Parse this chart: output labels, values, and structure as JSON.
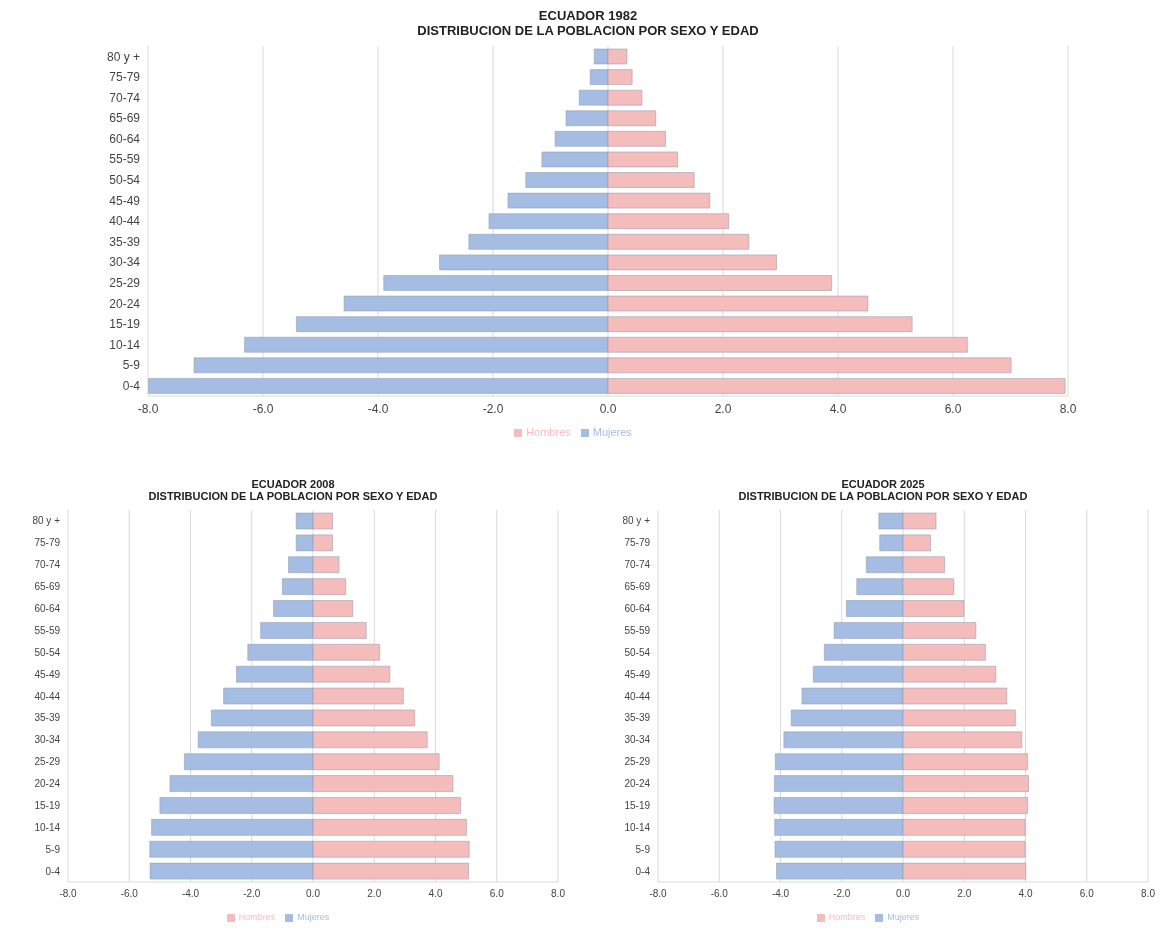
{
  "chart_data": [
    {
      "type": "bar",
      "orientation": "horizontal",
      "stacked": true,
      "title": "ECUADOR 1982",
      "subtitle": "DISTRIBUCION DE LA POBLACION POR SEXO Y EDAD",
      "categories": [
        "80 y +",
        "75-79",
        "70-74",
        "65-69",
        "60-64",
        "55-59",
        "50-54",
        "45-49",
        "40-44",
        "35-39",
        "30-34",
        "25-29",
        "20-24",
        "15-19",
        "10-14",
        "5-9",
        "0-4"
      ],
      "series": [
        {
          "name": "Mujeres",
          "color": "#a6bde3",
          "values": [
            -0.24,
            -0.31,
            -0.5,
            -0.73,
            -0.92,
            -1.15,
            -1.43,
            -1.74,
            -2.07,
            -2.42,
            -2.93,
            -3.9,
            -4.59,
            -5.42,
            -6.32,
            -7.2,
            -7.99
          ]
        },
        {
          "name": "Hombres",
          "color": "#f5bcbc",
          "values": [
            0.33,
            0.42,
            0.59,
            0.83,
            1.0,
            1.21,
            1.5,
            1.77,
            2.1,
            2.45,
            2.93,
            3.89,
            4.52,
            5.29,
            6.25,
            7.01,
            7.95
          ]
        }
      ],
      "xlim": [
        -8,
        8
      ],
      "xticks": [
        {
          "value": -8,
          "label": "-8.0"
        },
        {
          "value": -6,
          "label": "-6.0"
        },
        {
          "value": -4,
          "label": "-4.0"
        },
        {
          "value": -2,
          "label": "-2.0"
        },
        {
          "value": 0,
          "label": "0.0"
        },
        {
          "value": 2,
          "label": "2.0"
        },
        {
          "value": 4,
          "label": "4.0"
        },
        {
          "value": 6,
          "label": "6.0"
        },
        {
          "value": 8,
          "label": "8.0"
        }
      ],
      "grid": "x",
      "legend": "bottom"
    },
    {
      "type": "bar",
      "orientation": "horizontal",
      "stacked": true,
      "title": "ECUADOR 2008",
      "subtitle": "DISTRIBUCION DE LA POBLACION POR SEXO Y EDAD",
      "categories": [
        "80 y +",
        "75-79",
        "70-74",
        "65-69",
        "60-64",
        "55-59",
        "50-54",
        "45-49",
        "40-44",
        "35-39",
        "30-34",
        "25-29",
        "20-24",
        "15-19",
        "10-14",
        "5-9",
        "0-4"
      ],
      "series": [
        {
          "name": "Mujeres",
          "color": "#a6bde3",
          "values": [
            -0.55,
            -0.55,
            -0.8,
            -1.0,
            -1.29,
            -1.71,
            -2.13,
            -2.5,
            -2.92,
            -3.32,
            -3.75,
            -4.2,
            -4.67,
            -5.0,
            -5.27,
            -5.33,
            -5.32
          ]
        },
        {
          "name": "Hombres",
          "color": "#f5bcbc",
          "values": [
            0.64,
            0.64,
            0.85,
            1.07,
            1.3,
            1.74,
            2.18,
            2.51,
            2.95,
            3.32,
            3.73,
            4.12,
            4.57,
            4.82,
            5.01,
            5.1,
            5.08
          ]
        }
      ],
      "xlim": [
        -8,
        8
      ],
      "xticks": [
        {
          "value": -8,
          "label": "-8.0"
        },
        {
          "value": -6,
          "label": "-6.0"
        },
        {
          "value": -4,
          "label": "-4.0"
        },
        {
          "value": -2,
          "label": "-2.0"
        },
        {
          "value": 0,
          "label": "0.0"
        },
        {
          "value": 2,
          "label": "2.0"
        },
        {
          "value": 4,
          "label": "4.0"
        },
        {
          "value": 6,
          "label": "6.0"
        },
        {
          "value": 8,
          "label": "8.0"
        }
      ],
      "grid": "x",
      "legend": "bottom"
    },
    {
      "type": "bar",
      "orientation": "horizontal",
      "stacked": true,
      "title": "ECUADOR 2025",
      "subtitle": "DISTRIBUCION DE LA POBLACION POR SEXO Y EDAD",
      "categories": [
        "80 y +",
        "75-79",
        "70-74",
        "65-69",
        "60-64",
        "55-59",
        "50-54",
        "45-49",
        "40-44",
        "35-39",
        "30-34",
        "25-29",
        "20-24",
        "15-19",
        "10-14",
        "5-9",
        "0-4"
      ],
      "series": [
        {
          "name": "Mujeres",
          "color": "#a6bde3",
          "values": [
            -0.79,
            -0.76,
            -1.2,
            -1.51,
            -1.85,
            -2.25,
            -2.57,
            -2.93,
            -3.3,
            -3.65,
            -3.89,
            -4.17,
            -4.2,
            -4.21,
            -4.19,
            -4.18,
            -4.13
          ]
        },
        {
          "name": "Hombres",
          "color": "#f5bcbc",
          "values": [
            1.08,
            0.9,
            1.36,
            1.66,
            1.99,
            2.38,
            2.69,
            3.03,
            3.39,
            3.67,
            3.88,
            4.07,
            4.1,
            4.07,
            3.99,
            3.99,
            4.01
          ]
        }
      ],
      "xlim": [
        -8,
        8
      ],
      "xticks": [
        {
          "value": -8,
          "label": "-8.0"
        },
        {
          "value": -6,
          "label": "-6.0"
        },
        {
          "value": -4,
          "label": "-4.0"
        },
        {
          "value": -2,
          "label": "-2.0"
        },
        {
          "value": 0,
          "label": "0.0"
        },
        {
          "value": 2,
          "label": "2.0"
        },
        {
          "value": 4,
          "label": "4.0"
        },
        {
          "value": 6,
          "label": "6.0"
        },
        {
          "value": 8,
          "label": "8.0"
        }
      ],
      "grid": "x",
      "legend": "bottom"
    }
  ]
}
